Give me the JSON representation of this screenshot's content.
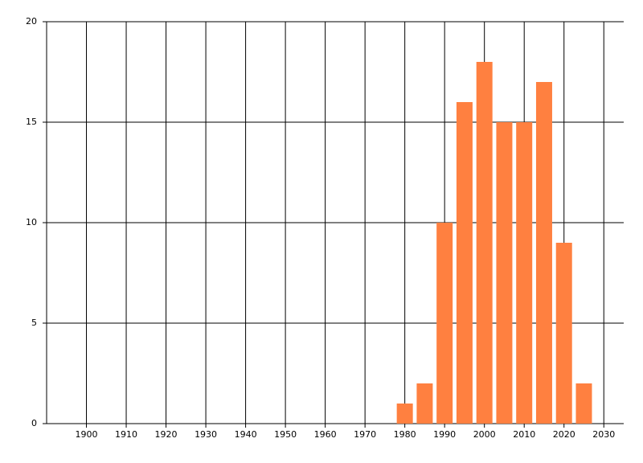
{
  "chart_data": {
    "type": "bar",
    "x": [
      1980,
      1985,
      1990,
      1995,
      2000,
      2005,
      2010,
      2015,
      2020,
      2025
    ],
    "values": [
      1,
      2,
      10,
      16,
      18,
      15,
      15,
      17,
      9,
      2
    ],
    "color": "#ff8040",
    "xlim": [
      1890,
      2035
    ],
    "xticks": [
      1900,
      1910,
      1920,
      1930,
      1940,
      1950,
      1960,
      1970,
      1980,
      1990,
      2000,
      2010,
      2020,
      2030
    ],
    "ylim": [
      0,
      20
    ],
    "yticks": [
      0,
      5,
      10,
      15,
      20
    ],
    "grid": true
  }
}
